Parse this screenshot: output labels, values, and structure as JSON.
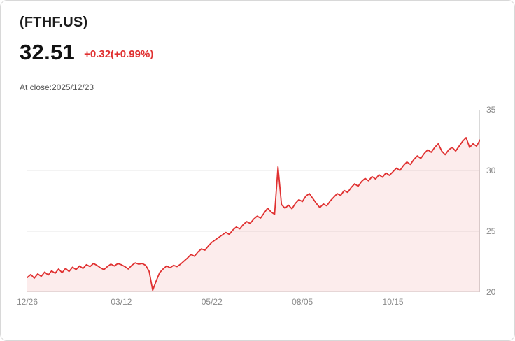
{
  "header": {
    "symbol": "(FTHF.US)",
    "price": "32.51",
    "change": "+0.32(+0.99%)",
    "close_note": "At close:2025/12/23"
  },
  "colors": {
    "accent": "#e03131",
    "area_fill": "rgba(224,49,49,0.09)",
    "grid": "#e7e7e7",
    "axis_line": "#d9d9d9",
    "axis_text": "#8a8a8a"
  },
  "chart_data": {
    "type": "area",
    "title": "(FTHF.US) price history",
    "xlabel": "",
    "ylabel": "",
    "ylim": [
      20,
      35
    ],
    "y_ticks": [
      20,
      25,
      30,
      35
    ],
    "y_axis_side": "right",
    "grid": "horizontal",
    "legend": "none",
    "x_tick_labels": [
      "12/26",
      "03/12",
      "05/22",
      "08/05",
      "10/15"
    ],
    "x_tick_indices": [
      0,
      27,
      53,
      79,
      105
    ],
    "values": [
      21.2,
      21.45,
      21.15,
      21.5,
      21.3,
      21.65,
      21.4,
      21.75,
      21.55,
      21.9,
      21.6,
      21.95,
      21.7,
      22.05,
      21.85,
      22.15,
      21.95,
      22.25,
      22.1,
      22.35,
      22.2,
      22.0,
      21.85,
      22.1,
      22.3,
      22.15,
      22.35,
      22.25,
      22.1,
      21.9,
      22.2,
      22.4,
      22.3,
      22.35,
      22.2,
      21.7,
      20.15,
      20.9,
      21.6,
      21.9,
      22.15,
      22.0,
      22.2,
      22.1,
      22.3,
      22.55,
      22.8,
      23.1,
      22.95,
      23.3,
      23.55,
      23.45,
      23.8,
      24.1,
      24.3,
      24.5,
      24.7,
      24.9,
      24.75,
      25.1,
      25.35,
      25.2,
      25.55,
      25.8,
      25.65,
      26.0,
      26.25,
      26.1,
      26.5,
      26.9,
      26.6,
      26.4,
      30.3,
      27.2,
      26.9,
      27.15,
      26.85,
      27.3,
      27.6,
      27.45,
      27.9,
      28.1,
      27.7,
      27.3,
      26.95,
      27.25,
      27.1,
      27.5,
      27.8,
      28.1,
      27.95,
      28.35,
      28.2,
      28.6,
      28.9,
      28.7,
      29.1,
      29.35,
      29.15,
      29.5,
      29.3,
      29.65,
      29.45,
      29.8,
      29.6,
      29.9,
      30.2,
      30.0,
      30.4,
      30.7,
      30.5,
      30.9,
      31.2,
      31.0,
      31.4,
      31.7,
      31.5,
      31.9,
      32.2,
      31.6,
      31.3,
      31.7,
      31.9,
      31.6,
      32.0,
      32.4,
      32.7,
      31.9,
      32.2,
      32.0,
      32.51
    ]
  }
}
